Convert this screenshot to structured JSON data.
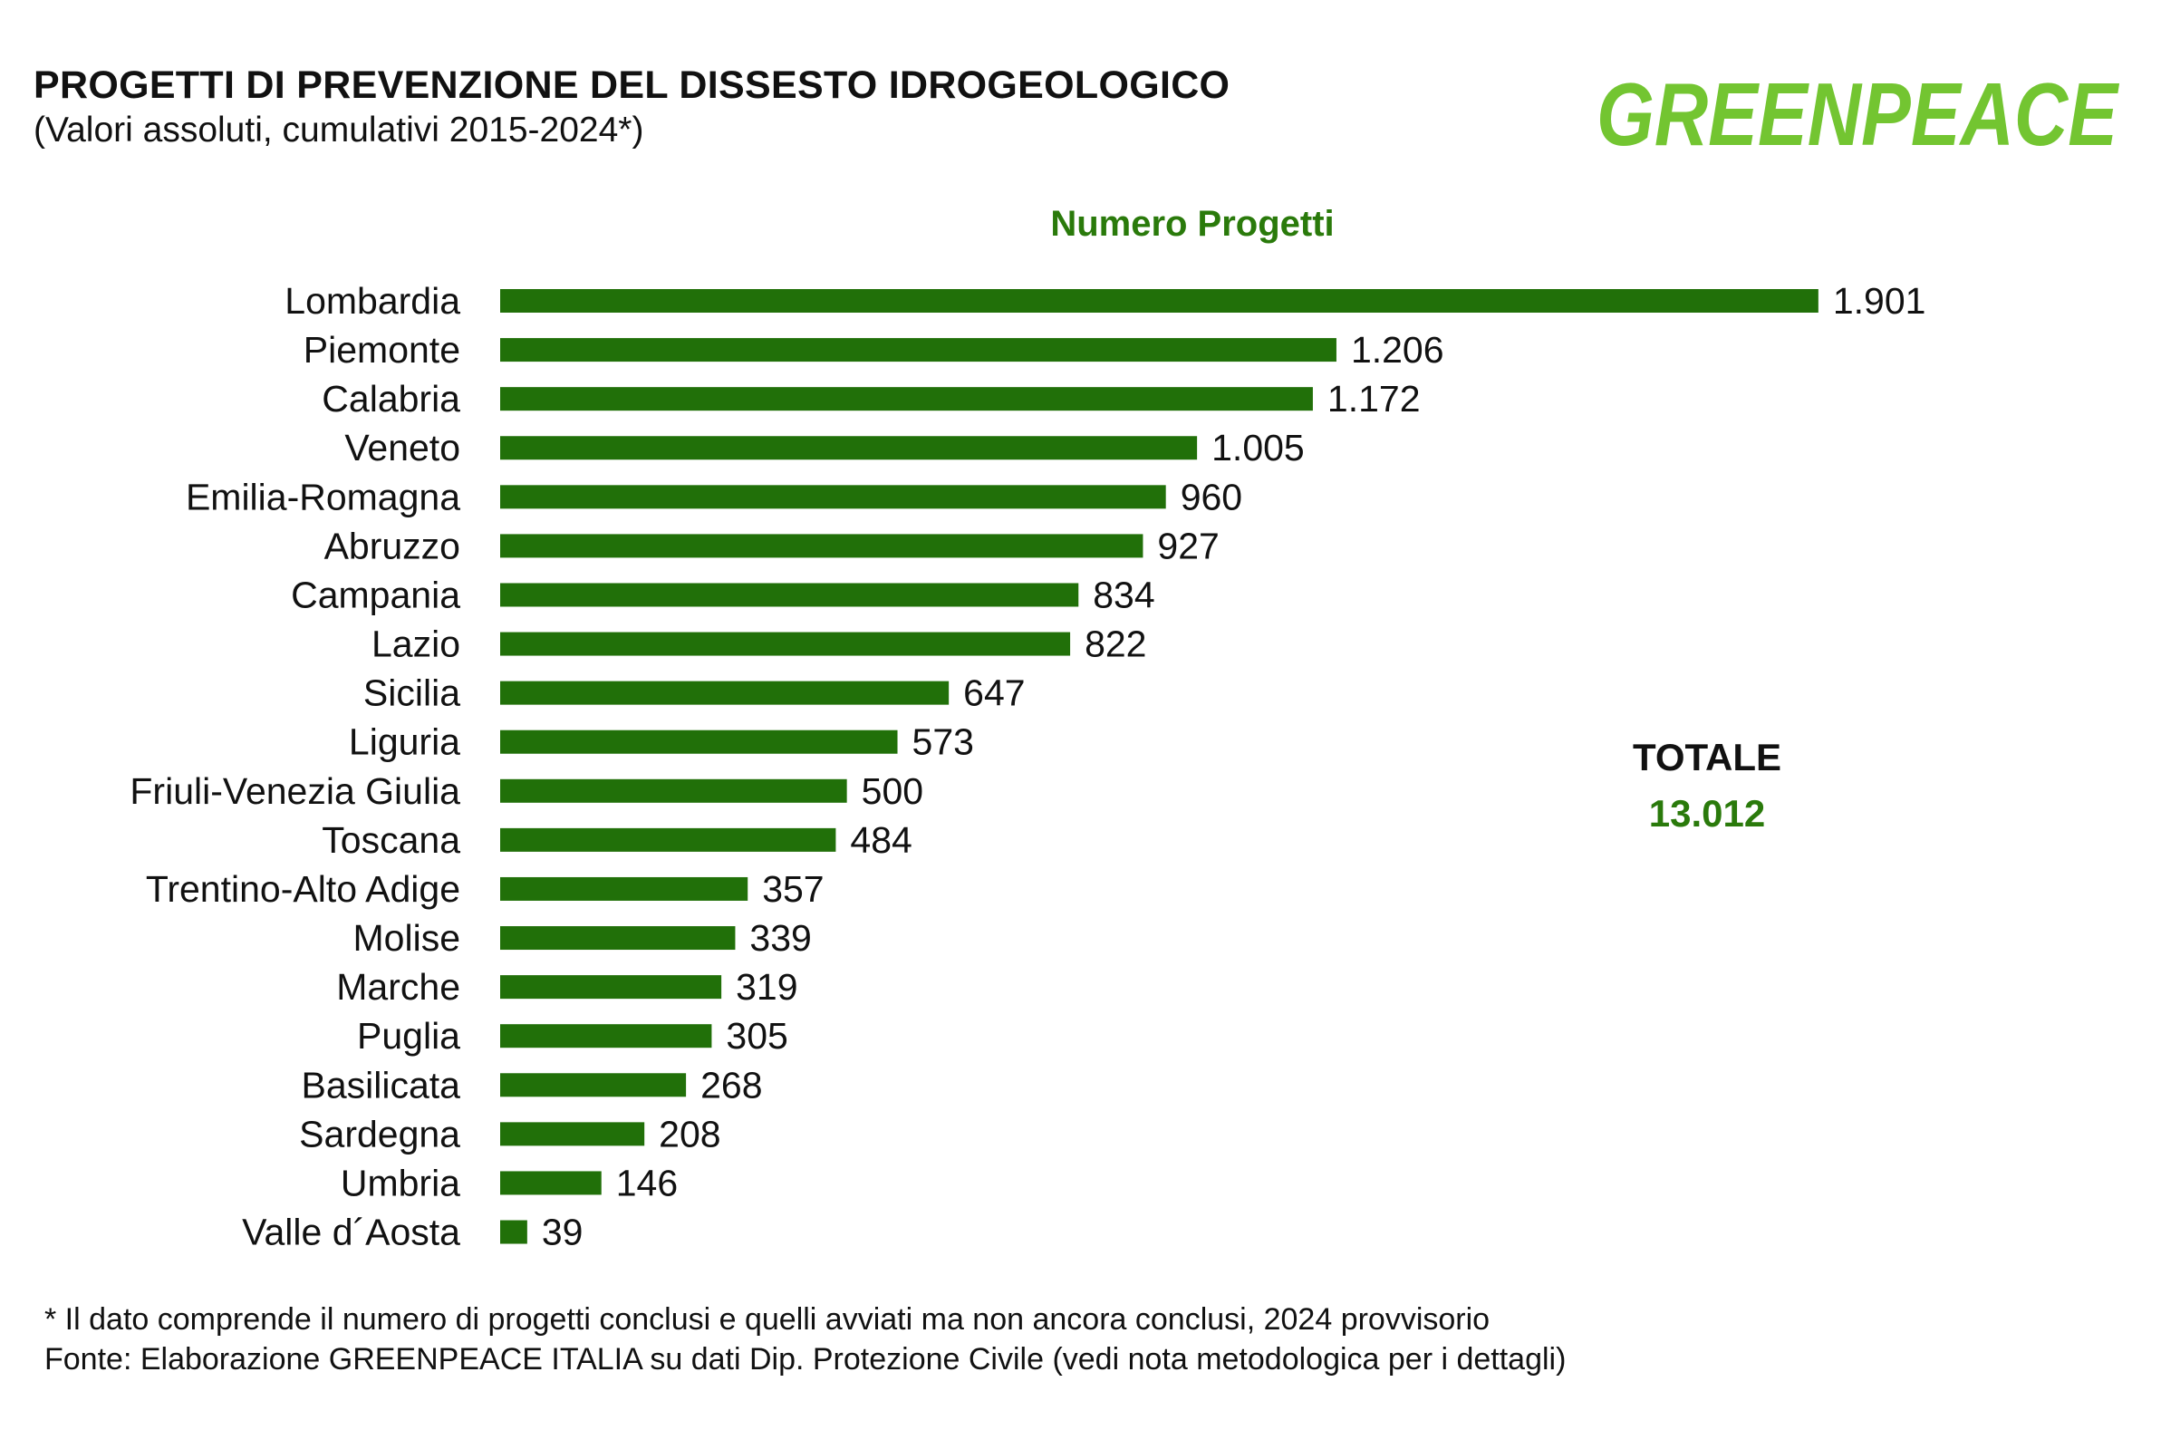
{
  "header": {
    "title": "PROGETTI DI PREVENZIONE DEL DISSESTO IDROGEOLOGICO",
    "subtitle": "(Valori assoluti, cumulativi 2015-2024*)",
    "logo_text": "GREENPEACE"
  },
  "colors": {
    "bar": "#217009",
    "accent": "#2a7a0b",
    "logo": "#73c531"
  },
  "total": {
    "label": "TOTALE",
    "value": "13.012"
  },
  "footer": {
    "note": "* Il dato comprende il numero di progetti conclusi e quelli avviati ma non ancora conclusi, 2024 provvisorio",
    "source": "Fonte: Elaborazione GREENPEACE ITALIA su dati Dip. Protezione Civile (vedi nota metodologica per i dettagli)"
  },
  "chart_data": {
    "type": "bar",
    "orientation": "horizontal",
    "title": "Numero Progetti",
    "categories": [
      "Lombardia",
      "Piemonte",
      "Calabria",
      "Veneto",
      "Emilia-Romagna",
      "Abruzzo",
      "Campania",
      "Lazio",
      "Sicilia",
      "Liguria",
      "Friuli-Venezia Giulia",
      "Toscana",
      "Trentino-Alto Adige",
      "Molise",
      "Marche",
      "Puglia",
      "Basilicata",
      "Sardegna",
      "Umbria",
      "Valle d´Aosta"
    ],
    "values": [
      1901,
      1206,
      1172,
      1005,
      960,
      927,
      834,
      822,
      647,
      573,
      500,
      484,
      357,
      339,
      319,
      305,
      268,
      208,
      146,
      39
    ],
    "data_labels": [
      "1.901",
      "1.206",
      "1.172",
      "1.005",
      "960",
      "927",
      "834",
      "822",
      "647",
      "573",
      "500",
      "484",
      "357",
      "339",
      "319",
      "305",
      "268",
      "208",
      "146",
      "39"
    ],
    "xlabel": "",
    "ylabel": "",
    "grid": false
  }
}
